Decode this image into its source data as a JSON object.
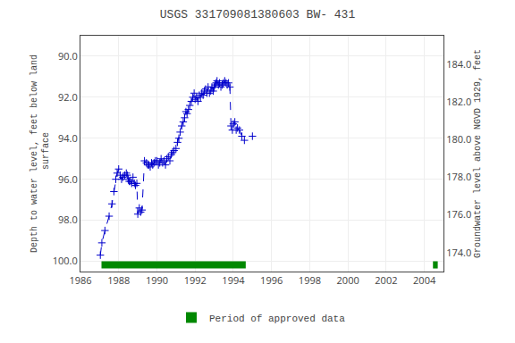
{
  "chart_data": {
    "type": "line",
    "title": "USGS 331709081380603 BW- 431",
    "y_label": "Depth to water level, feet below land\n surface",
    "y2_label": "Groundwater level above NGVD 1929, feet",
    "xlim": [
      1986,
      2005
    ],
    "xticks": [
      1986,
      1988,
      1990,
      1992,
      1994,
      1996,
      1998,
      2000,
      2002,
      2004
    ],
    "ylim": [
      100.5,
      89.0
    ],
    "yticks": [
      {
        "value": 90.0,
        "label": "90.0"
      },
      {
        "value": 92.0,
        "label": "92.0"
      },
      {
        "value": 94.0,
        "label": "94.0"
      },
      {
        "value": 96.0,
        "label": "96.0"
      },
      {
        "value": 98.0,
        "label": "98.0"
      },
      {
        "value": 100.0,
        "label": "100.0"
      }
    ],
    "y2lim": [
      173.0,
      185.5
    ],
    "y2ticks": [
      {
        "value": 174.0,
        "label": "174.0"
      },
      {
        "value": 176.0,
        "label": "176.0"
      },
      {
        "value": 178.0,
        "label": "178.0"
      },
      {
        "value": 180.0,
        "label": "180.0"
      },
      {
        "value": 182.0,
        "label": "182.0"
      },
      {
        "value": 184.0,
        "label": "184.0"
      }
    ],
    "grid": true,
    "legend": "bottom",
    "series": [
      {
        "type": "line",
        "color": "#0000cc",
        "line_style": "dashed",
        "marker": "plus",
        "x": [
          1987.04,
          1987.12,
          1987.28,
          1987.5,
          1987.65,
          1987.75,
          1987.85,
          1987.92,
          1988.0,
          1988.08,
          1988.15,
          1988.22,
          1988.32,
          1988.4,
          1988.45,
          1988.5,
          1988.55,
          1988.62,
          1988.68,
          1988.75,
          1988.82,
          1988.88,
          1988.95,
          1989.0,
          1989.08,
          1989.15,
          1989.22,
          1989.35,
          1989.45,
          1989.52,
          1989.58,
          1989.65,
          1989.72,
          1989.78,
          1989.85,
          1989.92,
          1990.0,
          1990.08,
          1990.15,
          1990.22,
          1990.3,
          1990.38,
          1990.45,
          1990.52,
          1990.6,
          1990.68,
          1990.75,
          1990.82,
          1990.9,
          1991.0,
          1991.08,
          1991.15,
          1991.22,
          1991.3,
          1991.38,
          1991.45,
          1991.52,
          1991.58,
          1991.65,
          1991.72,
          1991.8,
          1991.88,
          1991.95,
          1992.0,
          1992.08,
          1992.15,
          1992.22,
          1992.28,
          1992.35,
          1992.42,
          1992.48,
          1992.55,
          1992.62,
          1992.68,
          1992.75,
          1992.82,
          1992.88,
          1992.95,
          1993.0,
          1993.05,
          1993.1,
          1993.15,
          1993.22,
          1993.28,
          1993.35,
          1993.42,
          1993.48,
          1993.55,
          1993.62,
          1993.68,
          1993.75,
          1993.82,
          1993.88,
          1993.95,
          1994.0,
          1994.08,
          1994.15,
          1994.22,
          1994.32,
          1994.45,
          1994.58
        ],
        "values": [
          99.7,
          99.1,
          98.5,
          97.8,
          97.2,
          96.6,
          96.0,
          95.7,
          95.5,
          95.8,
          96.0,
          95.9,
          95.8,
          95.7,
          95.8,
          96.0,
          96.1,
          96.1,
          96.2,
          95.9,
          96.2,
          96.3,
          96.2,
          97.7,
          97.4,
          97.6,
          97.5,
          95.1,
          95.2,
          95.3,
          95.3,
          95.4,
          95.2,
          95.3,
          95.2,
          95.1,
          95.1,
          95.3,
          95.2,
          95.0,
          95.2,
          95.1,
          95.3,
          95.0,
          94.9,
          95.1,
          94.8,
          94.7,
          94.6,
          94.5,
          94.2,
          94.0,
          93.7,
          93.4,
          93.2,
          93.0,
          92.7,
          92.8,
          92.6,
          92.4,
          92.2,
          92.0,
          91.8,
          92.1,
          92.0,
          92.2,
          91.9,
          92.0,
          91.8,
          91.9,
          91.7,
          91.6,
          91.8,
          91.5,
          91.8,
          91.7,
          91.5,
          91.7,
          91.5,
          91.4,
          91.3,
          91.2,
          91.4,
          91.3,
          91.5,
          91.4,
          91.3,
          91.2,
          91.3,
          91.4,
          91.3,
          91.5,
          93.4,
          93.6,
          93.3,
          93.2,
          93.6,
          93.5,
          93.6,
          93.9,
          94.1
        ]
      },
      {
        "type": "scatter",
        "color": "#0000cc",
        "marker": "plus",
        "x": [
          1995.0
        ],
        "values": [
          93.9
        ]
      },
      {
        "type": "bar",
        "orientation": "horizontal",
        "name": "Period of approved data",
        "color": "#008800",
        "spans": [
          {
            "start": 1987.1,
            "width": 7.55
          },
          {
            "start": 2004.45,
            "width": 0.25
          }
        ],
        "y": 100.0,
        "height": 0.35
      }
    ]
  }
}
